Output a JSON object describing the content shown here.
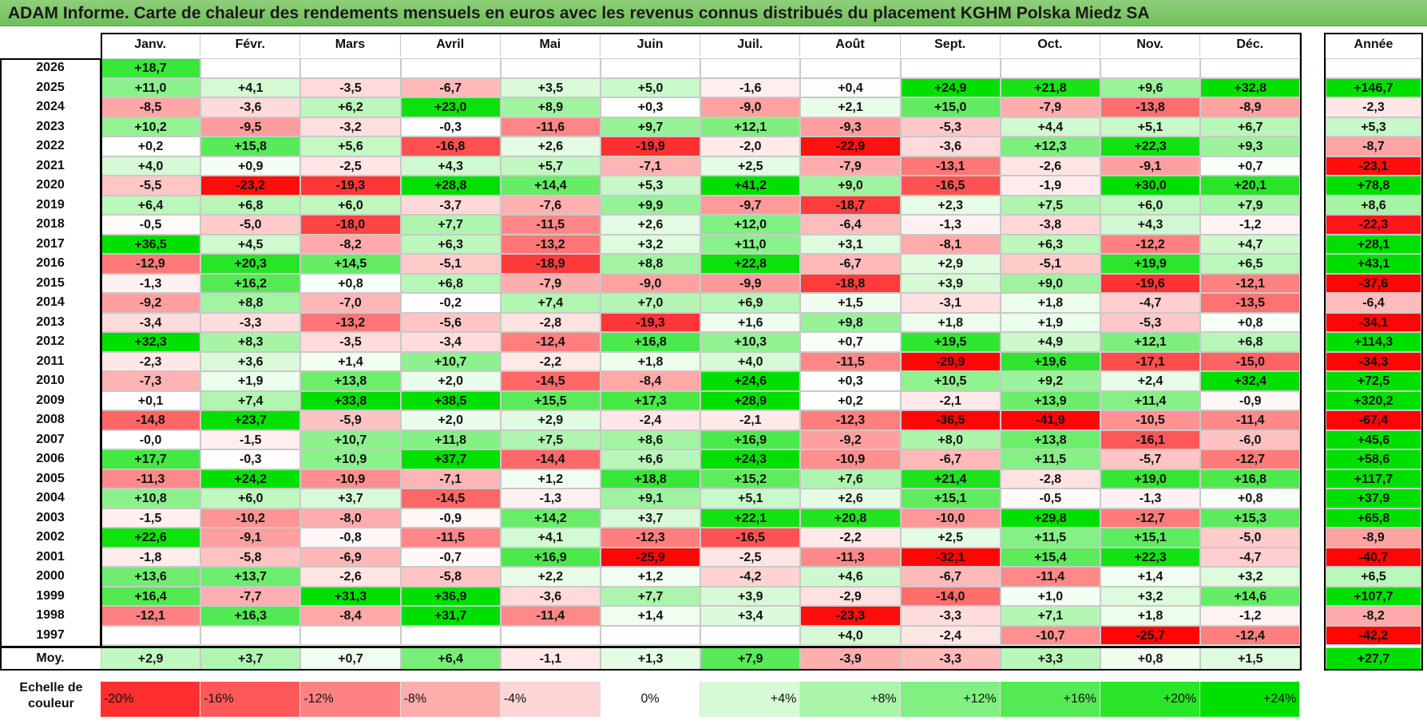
{
  "title": "ADAM Informe. Carte de chaleur des rendements mensuels en euros avec les revenus connus distribués du placement KGHM Polska Miedz SA",
  "chart_data": {
    "type": "heatmap",
    "columns": [
      "Janv.",
      "Févr.",
      "Mars",
      "Avril",
      "Mai",
      "Juin",
      "Juil.",
      "Août",
      "Sept.",
      "Oct.",
      "Nov.",
      "Déc."
    ],
    "year_header": "Année",
    "rows": [
      {
        "year": "2026",
        "values": [
          "+18,7",
          "",
          "",
          "",
          "",
          "",
          "",
          "",
          "",
          "",
          "",
          ""
        ],
        "annual": ""
      },
      {
        "year": "2025",
        "values": [
          "+11,0",
          "+4,1",
          "-3,5",
          "-6,7",
          "+3,5",
          "+5,0",
          "-1,6",
          "+0,4",
          "+24,9",
          "+21,8",
          "+9,6",
          "+32,8"
        ],
        "annual": "+146,7"
      },
      {
        "year": "2024",
        "values": [
          "-8,5",
          "-3,6",
          "+6,2",
          "+23,0",
          "+8,9",
          "+0,3",
          "-9,0",
          "+2,1",
          "+15,0",
          "-7,9",
          "-13,8",
          "-8,9"
        ],
        "annual": "-2,3"
      },
      {
        "year": "2023",
        "values": [
          "+10,2",
          "-9,5",
          "-3,2",
          "-0,3",
          "-11,6",
          "+9,7",
          "+12,1",
          "-9,3",
          "-5,3",
          "+4,4",
          "+5,1",
          "+6,7"
        ],
        "annual": "+5,3"
      },
      {
        "year": "2022",
        "values": [
          "+0,2",
          "+15,8",
          "+5,6",
          "-16,8",
          "+2,6",
          "-19,9",
          "-2,0",
          "-22,9",
          "-3,6",
          "+12,3",
          "+22,3",
          "+9,3"
        ],
        "annual": "-8,7"
      },
      {
        "year": "2021",
        "values": [
          "+4,0",
          "+0,9",
          "-2,5",
          "+4,3",
          "+5,7",
          "-7,1",
          "+2,5",
          "-7,9",
          "-13,1",
          "-2,6",
          "-9,1",
          "+0,7"
        ],
        "annual": "-23,1"
      },
      {
        "year": "2020",
        "values": [
          "-5,5",
          "-23,2",
          "-19,3",
          "+28,8",
          "+14,4",
          "+5,3",
          "+41,2",
          "+9,0",
          "-16,5",
          "-1,9",
          "+30,0",
          "+20,1"
        ],
        "annual": "+78,8"
      },
      {
        "year": "2019",
        "values": [
          "+6,4",
          "+6,8",
          "+6,0",
          "-3,7",
          "-7,6",
          "+9,9",
          "-9,7",
          "-18,7",
          "+2,3",
          "+7,5",
          "+6,0",
          "+7,9"
        ],
        "annual": "+8,6"
      },
      {
        "year": "2018",
        "values": [
          "-0,5",
          "-5,0",
          "-18,0",
          "+7,7",
          "-11,5",
          "+2,6",
          "+12,0",
          "-6,4",
          "-1,3",
          "-3,8",
          "+4,3",
          "-1,2"
        ],
        "annual": "-22,3"
      },
      {
        "year": "2017",
        "values": [
          "+36,5",
          "+4,5",
          "-8,2",
          "+6,3",
          "-13,2",
          "+3,2",
          "+11,0",
          "+3,1",
          "-8,1",
          "+6,3",
          "-12,2",
          "+4,7"
        ],
        "annual": "+28,1"
      },
      {
        "year": "2016",
        "values": [
          "-12,9",
          "+20,3",
          "+14,5",
          "-5,1",
          "-18,9",
          "+8,8",
          "+22,8",
          "-6,7",
          "+2,9",
          "-5,1",
          "+19,9",
          "+6,5"
        ],
        "annual": "+43,1"
      },
      {
        "year": "2015",
        "values": [
          "-1,3",
          "+16,2",
          "+0,8",
          "+6,8",
          "-7,9",
          "-9,0",
          "-9,9",
          "-18,8",
          "+3,9",
          "+9,0",
          "-19,6",
          "-12,1"
        ],
        "annual": "-37,6"
      },
      {
        "year": "2014",
        "values": [
          "-9,2",
          "+8,8",
          "-7,0",
          "-0,2",
          "+7,4",
          "+7,0",
          "+6,9",
          "+1,5",
          "-3,1",
          "+1,8",
          "-4,7",
          "-13,5"
        ],
        "annual": "-6,4"
      },
      {
        "year": "2013",
        "values": [
          "-3,4",
          "-3,3",
          "-13,2",
          "-5,6",
          "-2,8",
          "-19,3",
          "+1,6",
          "+9,8",
          "+1,8",
          "+1,9",
          "-5,3",
          "+0,8"
        ],
        "annual": "-34,1"
      },
      {
        "year": "2012",
        "values": [
          "+32,3",
          "+8,3",
          "-3,5",
          "-3,4",
          "-12,4",
          "+16,8",
          "+10,3",
          "+0,7",
          "+19,5",
          "+4,9",
          "+12,1",
          "+6,8"
        ],
        "annual": "+114,3"
      },
      {
        "year": "2011",
        "values": [
          "-2,3",
          "+3,6",
          "+1,4",
          "+10,7",
          "-2,2",
          "+1,8",
          "+4,0",
          "-11,5",
          "-29,9",
          "+19,6",
          "-17,1",
          "-15,0"
        ],
        "annual": "-34,3"
      },
      {
        "year": "2010",
        "values": [
          "-7,3",
          "+1,9",
          "+13,8",
          "+2,0",
          "-14,5",
          "-8,4",
          "+24,6",
          "+0,3",
          "+10,5",
          "+9,2",
          "+2,4",
          "+32,4"
        ],
        "annual": "+72,5"
      },
      {
        "year": "2009",
        "values": [
          "+0,1",
          "+7,4",
          "+33,8",
          "+38,5",
          "+15,5",
          "+17,3",
          "+28,9",
          "+0,2",
          "-2,1",
          "+13,9",
          "+11,4",
          "-0,9"
        ],
        "annual": "+320,2"
      },
      {
        "year": "2008",
        "values": [
          "-14,8",
          "+23,7",
          "-5,9",
          "+2,0",
          "+2,9",
          "-2,4",
          "-2,1",
          "-12,3",
          "-36,5",
          "-41,9",
          "-10,5",
          "-11,4"
        ],
        "annual": "-67,4"
      },
      {
        "year": "2007",
        "values": [
          "-0,0",
          "-1,5",
          "+10,7",
          "+11,8",
          "+7,5",
          "+8,6",
          "+16,9",
          "-9,2",
          "+8,0",
          "+13,8",
          "-16,1",
          "-6,0"
        ],
        "annual": "+45,6"
      },
      {
        "year": "2006",
        "values": [
          "+17,7",
          "-0,3",
          "+10,9",
          "+37,7",
          "-14,4",
          "+6,6",
          "+24,3",
          "-10,9",
          "-6,7",
          "+11,5",
          "-5,7",
          "-12,7"
        ],
        "annual": "+58,6"
      },
      {
        "year": "2005",
        "values": [
          "-11,3",
          "+24,2",
          "-10,9",
          "-7,1",
          "+1,2",
          "+18,8",
          "+15,2",
          "+7,6",
          "+21,4",
          "-2,8",
          "+19,0",
          "+16,8"
        ],
        "annual": "+117,7"
      },
      {
        "year": "2004",
        "values": [
          "+10,8",
          "+6,0",
          "+3,7",
          "-14,5",
          "-1,3",
          "+9,1",
          "+5,1",
          "+2,6",
          "+15,1",
          "-0,5",
          "-1,3",
          "+0,8"
        ],
        "annual": "+37,9"
      },
      {
        "year": "2003",
        "values": [
          "-1,5",
          "-10,2",
          "-8,0",
          "-0,9",
          "+14,2",
          "+3,7",
          "+22,1",
          "+20,8",
          "-10,0",
          "+29,8",
          "-12,7",
          "+15,3"
        ],
        "annual": "+65,8"
      },
      {
        "year": "2002",
        "values": [
          "+22,6",
          "-9,1",
          "-0,8",
          "-11,5",
          "+4,1",
          "-12,3",
          "-16,5",
          "-2,2",
          "+2,5",
          "+11,5",
          "+15,1",
          "-5,0"
        ],
        "annual": "-8,9"
      },
      {
        "year": "2001",
        "values": [
          "-1,8",
          "-5,8",
          "-6,9",
          "-0,7",
          "+16,9",
          "-25,9",
          "-2,5",
          "-11,3",
          "-32,1",
          "+15,4",
          "+22,3",
          "-4,7"
        ],
        "annual": "-40,7"
      },
      {
        "year": "2000",
        "values": [
          "+13,6",
          "+13,7",
          "-2,6",
          "-5,8",
          "+2,2",
          "+1,2",
          "-4,2",
          "+4,6",
          "-6,7",
          "-11,4",
          "+1,4",
          "+3,2"
        ],
        "annual": "+6,5"
      },
      {
        "year": "1999",
        "values": [
          "+16,4",
          "-7,7",
          "+31,3",
          "+36,9",
          "-3,6",
          "+7,7",
          "+3,9",
          "-2,9",
          "-14,0",
          "+1,0",
          "+3,2",
          "+14,6"
        ],
        "annual": "+107,7"
      },
      {
        "year": "1998",
        "values": [
          "-12,1",
          "+16,3",
          "-8,4",
          "+31,7",
          "-11,4",
          "+1,4",
          "+3,4",
          "-23,3",
          "-3,3",
          "+7,1",
          "+1,8",
          "-1,2"
        ],
        "annual": "-8,2"
      },
      {
        "year": "1997",
        "values": [
          "",
          "",
          "",
          "",
          "",
          "",
          "",
          "+4,0",
          "-2,4",
          "-10,7",
          "-25,7",
          "-12,4"
        ],
        "annual": "-42,2"
      }
    ],
    "average": {
      "label": "Moy.",
      "values": [
        "+2,9",
        "+3,7",
        "+0,7",
        "+6,4",
        "-1,1",
        "+1,3",
        "+7,9",
        "-3,9",
        "-3,3",
        "+3,3",
        "+0,8",
        "+1,5"
      ],
      "annual": "+27,7"
    },
    "scale": {
      "label_line1": "Echelle de",
      "label_line2": "couleur",
      "labels": [
        "-20%",
        "-16%",
        "-12%",
        "-8%",
        "-4%",
        "0%",
        "+4%",
        "+8%",
        "+12%",
        "+16%",
        "+20%",
        "+24%"
      ],
      "values": [
        -20,
        -16,
        -12,
        -8,
        -4,
        0,
        4,
        8,
        12,
        16,
        20,
        24
      ]
    },
    "colors": {
      "neg_max": "#ff0000",
      "pos_max": "#00e000",
      "neutral": "#ffffff",
      "title_bg": "#7dc86a"
    }
  }
}
